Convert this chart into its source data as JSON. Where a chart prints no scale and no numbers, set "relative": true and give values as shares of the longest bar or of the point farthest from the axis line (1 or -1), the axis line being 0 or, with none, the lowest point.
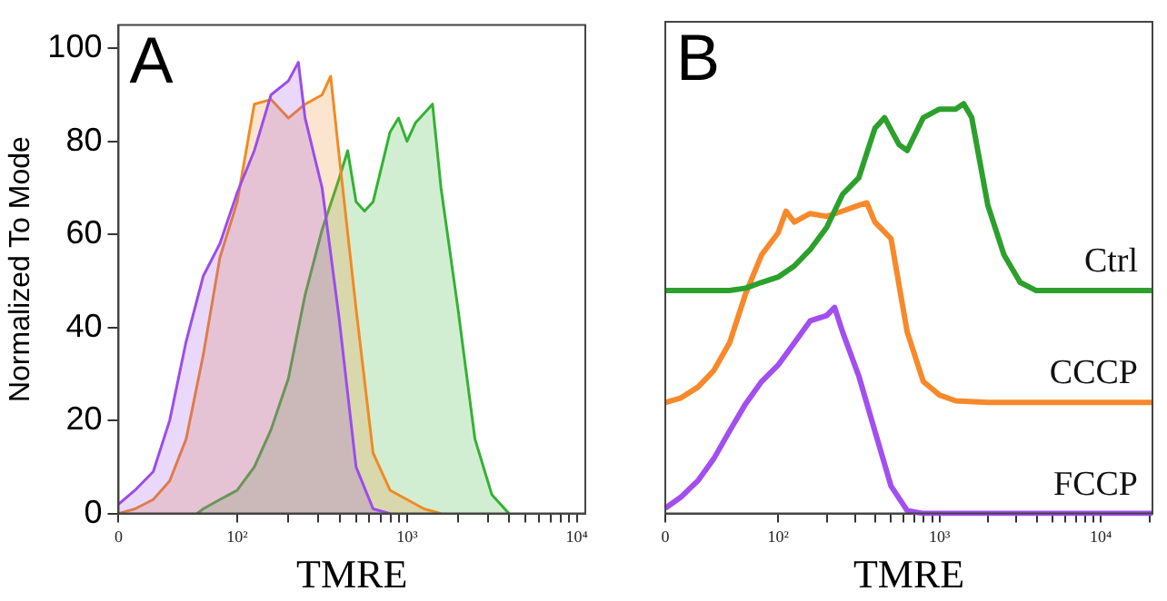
{
  "chart_data": [
    {
      "type": "area",
      "title": "A",
      "xlabel": "TMRE",
      "ylabel": "Normalized To Mode",
      "log": "x",
      "xlim": [
        0,
        11220
      ],
      "ylim": [
        0,
        105
      ],
      "xticks": [
        {
          "value": 0,
          "label": "0"
        },
        {
          "value": 100,
          "label": "10²"
        },
        {
          "value": 200,
          "label": null
        },
        {
          "value": 300,
          "label": null
        },
        {
          "value": 400,
          "label": null
        },
        {
          "value": 500,
          "label": null
        },
        {
          "value": 600,
          "label": null
        },
        {
          "value": 700,
          "label": null
        },
        {
          "value": 800,
          "label": null
        },
        {
          "value": 900,
          "label": null
        },
        {
          "value": 1000,
          "label": "10³"
        },
        {
          "value": 2000,
          "label": null
        },
        {
          "value": 3000,
          "label": null
        },
        {
          "value": 4000,
          "label": null
        },
        {
          "value": 5000,
          "label": null
        },
        {
          "value": 6000,
          "label": null
        },
        {
          "value": 7000,
          "label": null
        },
        {
          "value": 8000,
          "label": null
        },
        {
          "value": 9000,
          "label": null
        },
        {
          "value": 10000,
          "label": "10⁴"
        }
      ],
      "yticks": [
        0,
        20,
        40,
        60,
        80,
        100
      ],
      "grid": false,
      "legend": false,
      "marker": "none",
      "series": [
        {
          "color": "#9b4dea",
          "x": [
            20,
            25,
            32,
            40,
            50,
            63,
            79,
            100,
            126,
            158,
            200,
            229,
            251,
            316,
            398,
            501,
            631,
            794
          ],
          "values": [
            2,
            5,
            9,
            20,
            37,
            51,
            58,
            69,
            78,
            90,
            93,
            97,
            85,
            70,
            42,
            10,
            1,
            0
          ]
        },
        {
          "color": "#f08a24",
          "x": [
            20,
            25,
            32,
            40,
            50,
            63,
            79,
            100,
            126,
            158,
            200,
            251,
            316,
            355,
            398,
            501,
            631,
            794,
            1000,
            1259,
            1585
          ],
          "values": [
            0,
            1,
            3,
            7,
            16,
            34,
            55,
            67,
            88,
            89,
            85,
            88,
            90,
            94,
            77,
            44,
            13,
            5,
            3,
            1,
            0
          ]
        },
        {
          "color": "#33b233",
          "x": [
            58,
            63,
            79,
            100,
            126,
            158,
            200,
            251,
            316,
            398,
            447,
            501,
            562,
            631,
            794,
            891,
            1000,
            1122,
            1413,
            1585,
            1995,
            2512,
            3162,
            3981
          ],
          "values": [
            0,
            1,
            3,
            5,
            10,
            18,
            29,
            47,
            61,
            72,
            78,
            67,
            65,
            67,
            82,
            85,
            80,
            84,
            88,
            70,
            44,
            16,
            4,
            0
          ]
        }
      ]
    },
    {
      "type": "line",
      "title": "B",
      "xlabel": "TMRE",
      "relative": true,
      "tick_labels": "x",
      "log": "x",
      "xlim": [
        0,
        20890
      ],
      "legend": false,
      "marker": "none",
      "grid": false,
      "xticks": [
        {
          "value": 0,
          "label": "0"
        },
        {
          "value": 100,
          "label": "10²"
        },
        {
          "value": 200,
          "label": null
        },
        {
          "value": 300,
          "label": null
        },
        {
          "value": 400,
          "label": null
        },
        {
          "value": 500,
          "label": null
        },
        {
          "value": 600,
          "label": null
        },
        {
          "value": 700,
          "label": null
        },
        {
          "value": 800,
          "label": null
        },
        {
          "value": 900,
          "label": null
        },
        {
          "value": 1000,
          "label": "10³"
        },
        {
          "value": 2000,
          "label": null
        },
        {
          "value": 3000,
          "label": null
        },
        {
          "value": 4000,
          "label": null
        },
        {
          "value": 5000,
          "label": null
        },
        {
          "value": 6000,
          "label": null
        },
        {
          "value": 7000,
          "label": null
        },
        {
          "value": 8000,
          "label": null
        },
        {
          "value": 9000,
          "label": null
        },
        {
          "value": 10000,
          "label": "10⁴"
        },
        {
          "value": 20000,
          "label": null
        }
      ],
      "series": [
        {
          "name": "Ctrl",
          "color": "#2ca02c",
          "x": [
            20,
            50,
            63,
            79,
            100,
            126,
            158,
            200,
            251,
            316,
            398,
            457,
            562,
            631,
            794,
            1000,
            1122,
            1259,
            1413,
            1585,
            1995,
            2512,
            3162,
            3981,
            20890
          ],
          "values": [
            0.544,
            0.544,
            0.55,
            0.564,
            0.577,
            0.604,
            0.644,
            0.698,
            0.779,
            0.819,
            0.94,
            0.966,
            0.9,
            0.886,
            0.966,
            0.987,
            0.987,
            0.987,
            1,
            0.966,
            0.752,
            0.631,
            0.564,
            0.544,
            0.544
          ]
        },
        {
          "name": "CCCP",
          "color": "#f7892b",
          "x": [
            20,
            25,
            32,
            40,
            50,
            63,
            79,
            100,
            112,
            126,
            158,
            200,
            251,
            316,
            355,
            398,
            501,
            631,
            794,
            1000,
            1259,
            1995,
            20890
          ],
          "values": [
            0.271,
            0.282,
            0.309,
            0.349,
            0.416,
            0.537,
            0.631,
            0.685,
            0.738,
            0.711,
            0.732,
            0.725,
            0.738,
            0.752,
            0.758,
            0.711,
            0.671,
            0.443,
            0.322,
            0.289,
            0.275,
            0.271,
            0.271
          ]
        },
        {
          "name": "FCCP",
          "color": "#a24ef0",
          "x": [
            20,
            25,
            32,
            40,
            50,
            63,
            79,
            100,
            126,
            158,
            200,
            224,
            251,
            316,
            398,
            501,
            631,
            794,
            20890
          ],
          "values": [
            0.013,
            0.04,
            0.081,
            0.134,
            0.201,
            0.268,
            0.322,
            0.362,
            0.416,
            0.47,
            0.483,
            0.503,
            0.443,
            0.336,
            0.201,
            0.067,
            0.007,
            0,
            0
          ]
        }
      ]
    }
  ]
}
